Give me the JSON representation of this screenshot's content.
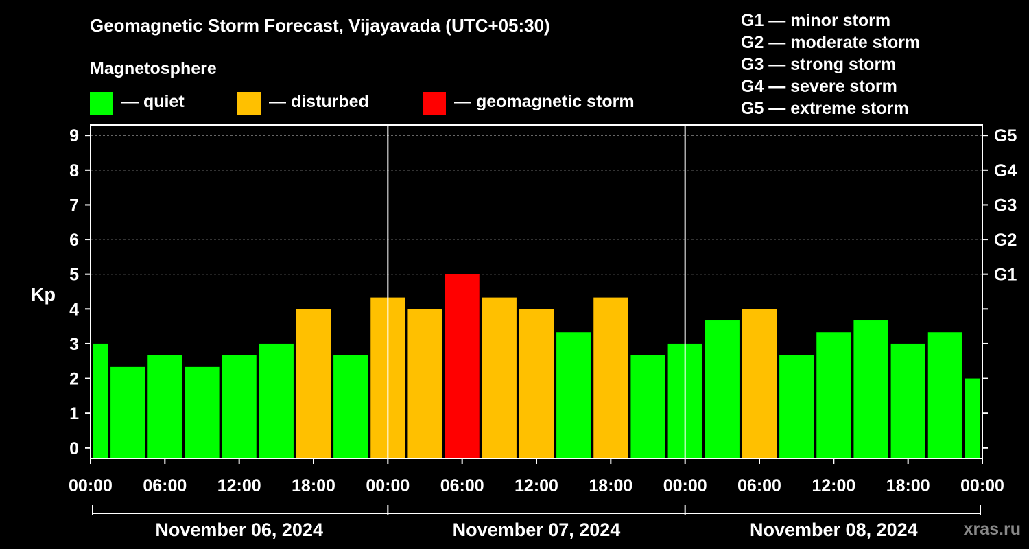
{
  "chart_data": {
    "type": "bar",
    "title": "Geomagnetic Storm Forecast, Vijayavada (UTC+05:30)",
    "subtitle": "Magnetosphere",
    "ylabel": "Kp",
    "ylim": [
      -0.3,
      9.3
    ],
    "yticks": [
      "0",
      "1",
      "2",
      "3",
      "4",
      "5",
      "6",
      "7",
      "8",
      "9"
    ],
    "right_axis": [
      {
        "kp": 5,
        "label": "G1"
      },
      {
        "kp": 6,
        "label": "G2"
      },
      {
        "kp": 7,
        "label": "G3"
      },
      {
        "kp": 8,
        "label": "G4"
      },
      {
        "kp": 9,
        "label": "G5"
      }
    ],
    "xlim_hours": [
      0,
      72
    ],
    "xticks": [
      "00:00",
      "06:00",
      "12:00",
      "18:00",
      "00:00",
      "06:00",
      "12:00",
      "18:00",
      "00:00",
      "06:00",
      "12:00",
      "18:00",
      "00:00"
    ],
    "dates": [
      "November 06, 2024",
      "November 07, 2024",
      "November 08, 2024"
    ],
    "legend": [
      {
        "label": "— quiet",
        "color": "#00ff00"
      },
      {
        "label": "— disturbed",
        "color": "#ffc000"
      },
      {
        "label": "— geomagnetic storm",
        "color": "#ff0000"
      }
    ],
    "g_levels": [
      "G1 — minor storm",
      "G2 — moderate storm",
      "G3 — strong storm",
      "G4 — severe storm",
      "G5 — extreme storm"
    ],
    "bars": [
      {
        "start": 0,
        "end": 1.5,
        "kp": 3.0,
        "level": "quiet"
      },
      {
        "start": 1.5,
        "end": 4.5,
        "kp": 2.33,
        "level": "quiet"
      },
      {
        "start": 4.5,
        "end": 7.5,
        "kp": 2.67,
        "level": "quiet"
      },
      {
        "start": 7.5,
        "end": 10.5,
        "kp": 2.33,
        "level": "quiet"
      },
      {
        "start": 10.5,
        "end": 13.5,
        "kp": 2.67,
        "level": "quiet"
      },
      {
        "start": 13.5,
        "end": 16.5,
        "kp": 3.0,
        "level": "quiet"
      },
      {
        "start": 16.5,
        "end": 19.5,
        "kp": 4.0,
        "level": "disturbed"
      },
      {
        "start": 19.5,
        "end": 22.5,
        "kp": 2.67,
        "level": "quiet"
      },
      {
        "start": 22.5,
        "end": 25.5,
        "kp": 4.33,
        "level": "disturbed"
      },
      {
        "start": 25.5,
        "end": 28.5,
        "kp": 4.0,
        "level": "disturbed"
      },
      {
        "start": 28.5,
        "end": 31.5,
        "kp": 5.0,
        "level": "storm"
      },
      {
        "start": 31.5,
        "end": 34.5,
        "kp": 4.33,
        "level": "disturbed"
      },
      {
        "start": 34.5,
        "end": 37.5,
        "kp": 4.0,
        "level": "disturbed"
      },
      {
        "start": 37.5,
        "end": 40.5,
        "kp": 3.33,
        "level": "quiet"
      },
      {
        "start": 40.5,
        "end": 43.5,
        "kp": 4.33,
        "level": "disturbed"
      },
      {
        "start": 43.5,
        "end": 46.5,
        "kp": 2.67,
        "level": "quiet"
      },
      {
        "start": 46.5,
        "end": 49.5,
        "kp": 3.0,
        "level": "quiet"
      },
      {
        "start": 49.5,
        "end": 52.5,
        "kp": 3.67,
        "level": "quiet"
      },
      {
        "start": 52.5,
        "end": 55.5,
        "kp": 4.0,
        "level": "disturbed"
      },
      {
        "start": 55.5,
        "end": 58.5,
        "kp": 2.67,
        "level": "quiet"
      },
      {
        "start": 58.5,
        "end": 61.5,
        "kp": 3.33,
        "level": "quiet"
      },
      {
        "start": 61.5,
        "end": 64.5,
        "kp": 3.67,
        "level": "quiet"
      },
      {
        "start": 64.5,
        "end": 67.5,
        "kp": 3.0,
        "level": "quiet"
      },
      {
        "start": 67.5,
        "end": 70.5,
        "kp": 3.33,
        "level": "quiet"
      },
      {
        "start": 70.5,
        "end": 72,
        "kp": 2.0,
        "level": "quiet"
      }
    ],
    "colors": {
      "quiet": "#00ff00",
      "disturbed": "#ffc000",
      "storm": "#ff0000"
    }
  },
  "brand": "xras.ru"
}
